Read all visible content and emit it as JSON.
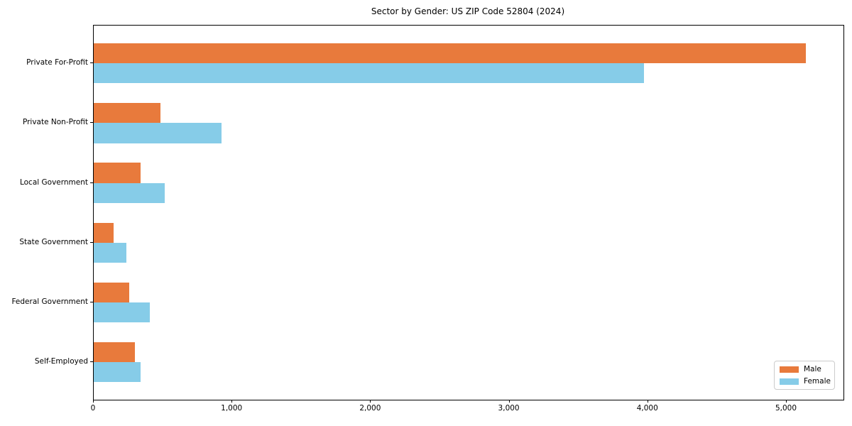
{
  "title": "Sector by Gender: US ZIP Code 52804 (2024)",
  "legend": {
    "items": [
      {
        "label": "Male",
        "color": "#e87a3c"
      },
      {
        "label": "Female",
        "color": "#86cce8"
      }
    ]
  },
  "chart_data": {
    "type": "bar",
    "orientation": "horizontal",
    "title": "Sector by Gender: US ZIP Code 52804 (2024)",
    "categories": [
      "Private For-Profit",
      "Private Non-Profit",
      "Local Government",
      "State Government",
      "Federal Government",
      "Self-Employed"
    ],
    "series": [
      {
        "name": "Male",
        "color": "#e87a3c",
        "values": [
          5140,
          480,
          340,
          145,
          255,
          295
        ]
      },
      {
        "name": "Female",
        "color": "#86cce8",
        "values": [
          3970,
          920,
          510,
          235,
          405,
          340
        ]
      }
    ],
    "xlabel": "",
    "ylabel": "",
    "xlim": [
      0,
      5410
    ],
    "x_ticks": [
      0,
      1000,
      2000,
      3000,
      4000,
      5000
    ],
    "x_tick_labels": [
      "0",
      "1,000",
      "2,000",
      "3,000",
      "4,000",
      "5,000"
    ],
    "grid": false,
    "legend_position": "lower right",
    "background_color": "#ffffff",
    "spine_color": "#000000"
  }
}
